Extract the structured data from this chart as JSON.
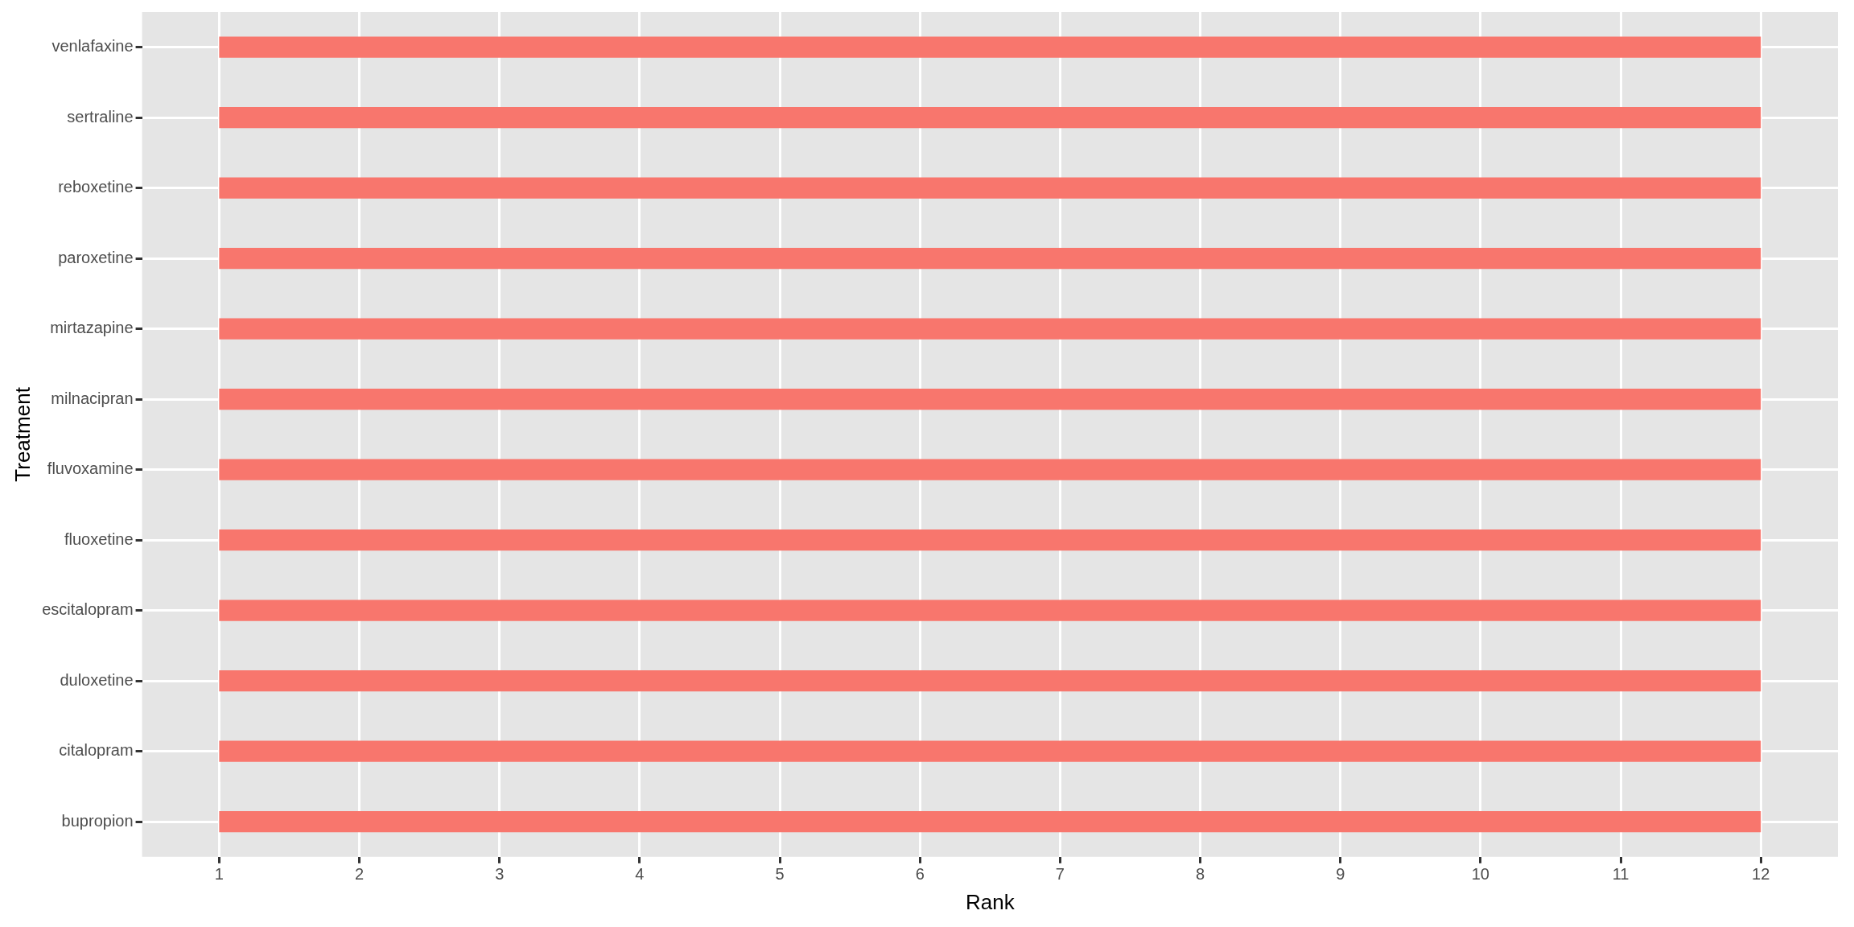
{
  "chart_data": {
    "type": "bar",
    "orientation": "horizontal",
    "xlabel": "Rank",
    "ylabel": "Treatment",
    "categories": [
      "venlafaxine",
      "sertraline",
      "reboxetine",
      "paroxetine",
      "mirtazapine",
      "milnacipran",
      "fluvoxamine",
      "fluoxetine",
      "escitalopram",
      "duloxetine",
      "citalopram",
      "bupropion"
    ],
    "base": [
      1,
      1,
      1,
      1,
      1,
      1,
      1,
      1,
      1,
      1,
      1,
      1
    ],
    "values": [
      11,
      11,
      11,
      11,
      11,
      11,
      11,
      11,
      11,
      11,
      11,
      11
    ],
    "color": "#f8766d",
    "xlim": [
      0.45,
      12.55
    ],
    "xticks": [
      1,
      2,
      3,
      4,
      5,
      6,
      7,
      8,
      9,
      10,
      11,
      12
    ],
    "grid": true,
    "legend": false
  }
}
